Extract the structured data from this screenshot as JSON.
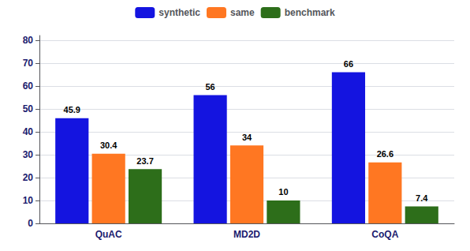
{
  "chart_data": {
    "type": "bar",
    "categories": [
      "QuAC",
      "MD2D",
      "CoQA"
    ],
    "series": [
      {
        "name": "synthetic",
        "color": "#1414e0",
        "values": [
          45.9,
          56,
          66
        ]
      },
      {
        "name": "same",
        "color": "#ff7722",
        "values": [
          30.4,
          34,
          26.6
        ]
      },
      {
        "name": "benchmark",
        "color": "#2d6e1a",
        "values": [
          23.7,
          10,
          7.4
        ]
      }
    ],
    "ylim": [
      0,
      82
    ],
    "yticks": [
      0,
      10,
      20,
      30,
      40,
      50,
      60,
      70,
      80
    ],
    "grid": true,
    "legend": "top",
    "data_labels": true
  }
}
